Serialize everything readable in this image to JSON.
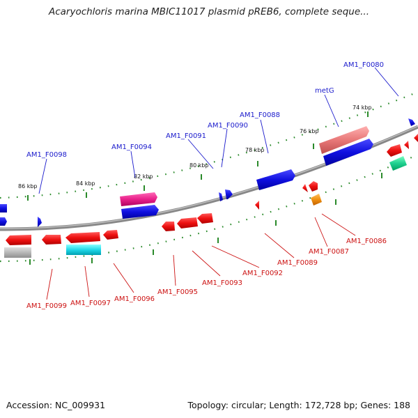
{
  "title": "Acaryochloris marina MBIC11017 plasmid pREB6, complete seque...",
  "footer": {
    "accession": "Accession: NC_009931",
    "summary": "Topology: circular; Length: 172,728 bp; Genes: 188"
  },
  "colors": {
    "forward_label": "#1a1acc",
    "reverse_label": "#cc1111",
    "backbone": "#808080",
    "tick": "#2a8a2a"
  },
  "scale_labels": [
    {
      "id": "86",
      "text": "86 kbp"
    },
    {
      "id": "84",
      "text": "84 kbp"
    },
    {
      "id": "82",
      "text": "82 kbp"
    },
    {
      "id": "80",
      "text": "80 kbp"
    },
    {
      "id": "78",
      "text": "78 kbp"
    },
    {
      "id": "76",
      "text": "76 kbp"
    },
    {
      "id": "74",
      "text": "74 kbp"
    }
  ],
  "forward_genes": [
    {
      "id": "AM1_F0098",
      "label": "AM1_F0098"
    },
    {
      "id": "AM1_F0094",
      "label": "AM1_F0094"
    },
    {
      "id": "AM1_F0091",
      "label": "AM1_F0091"
    },
    {
      "id": "AM1_F0090",
      "label": "AM1_F0090"
    },
    {
      "id": "AM1_F0088",
      "label": "AM1_F0088"
    },
    {
      "id": "metG",
      "label": "metG"
    },
    {
      "id": "AM1_F0080",
      "label": "AM1_F0080"
    }
  ],
  "reverse_genes": [
    {
      "id": "AM1_F0099",
      "label": "AM1_F0099"
    },
    {
      "id": "AM1_F0097",
      "label": "AM1_F0097"
    },
    {
      "id": "AM1_F0096",
      "label": "AM1_F0096"
    },
    {
      "id": "AM1_F0095",
      "label": "AM1_F0095"
    },
    {
      "id": "AM1_F0093",
      "label": "AM1_F0093"
    },
    {
      "id": "AM1_F0092",
      "label": "AM1_F0092"
    },
    {
      "id": "AM1_F0089",
      "label": "AM1_F0089"
    },
    {
      "id": "AM1_F0087",
      "label": "AM1_F0087"
    },
    {
      "id": "AM1_F0086",
      "label": "AM1_F0086"
    }
  ]
}
